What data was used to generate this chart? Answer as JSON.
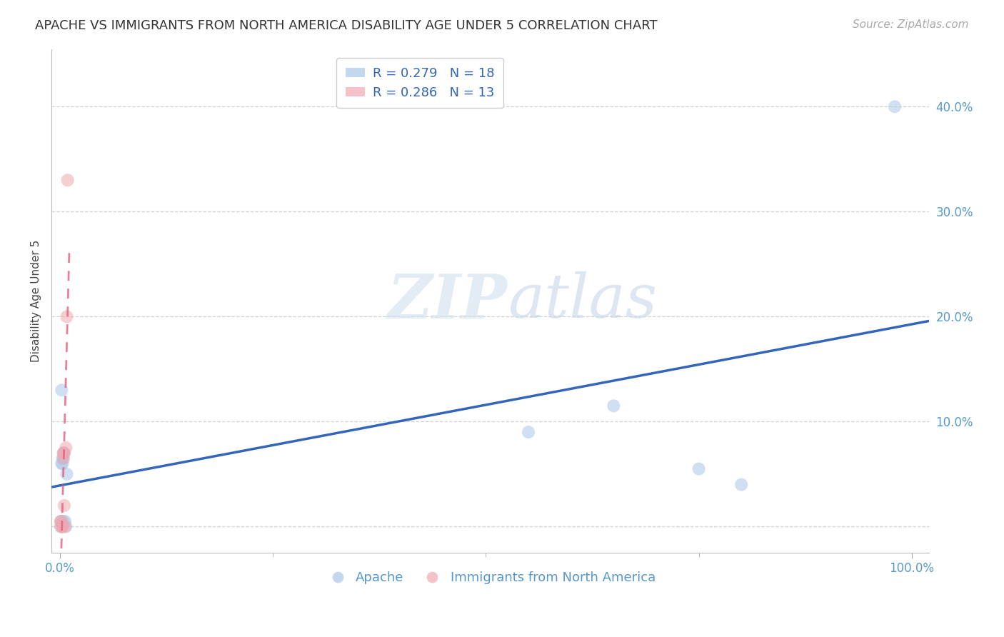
{
  "title": "APACHE VS IMMIGRANTS FROM NORTH AMERICA DISABILITY AGE UNDER 5 CORRELATION CHART",
  "source": "Source: ZipAtlas.com",
  "ylabel": "Disability Age Under 5",
  "watermark_zip": "ZIP",
  "watermark_atlas": "atlas",
  "background_color": "#ffffff",
  "plot_bg_color": "#ffffff",
  "grid_color": "#cccccc",
  "apache_color": "#aac8e8",
  "immigrants_color": "#f0a8b0",
  "apache_line_color": "#3366bb",
  "immigrants_line_color": "#e06080",
  "apache_label": "Apache",
  "immigrants_label": "Immigrants from North America",
  "legend_apache_R": "R = 0.279",
  "legend_apache_N": "N = 18",
  "legend_immigrants_R": "R = 0.286",
  "legend_immigrants_N": "N = 13",
  "apache_x": [
    0.001,
    0.001,
    0.002,
    0.002,
    0.003,
    0.003,
    0.004,
    0.004,
    0.004,
    0.005,
    0.006,
    0.007,
    0.008,
    0.55,
    0.65,
    0.75,
    0.8,
    0.98
  ],
  "apache_y": [
    0.005,
    0.0,
    0.06,
    0.13,
    0.06,
    0.065,
    0.065,
    0.07,
    0.005,
    0.07,
    0.005,
    0.0,
    0.05,
    0.09,
    0.115,
    0.055,
    0.04,
    0.4
  ],
  "immigrants_x": [
    0.001,
    0.001,
    0.002,
    0.003,
    0.003,
    0.004,
    0.004,
    0.005,
    0.005,
    0.006,
    0.007,
    0.008,
    0.009
  ],
  "immigrants_y": [
    0.0,
    0.005,
    0.005,
    0.0,
    0.0,
    0.065,
    0.07,
    0.02,
    0.07,
    0.0,
    0.075,
    0.2,
    0.33
  ],
  "xlim": [
    -0.01,
    1.02
  ],
  "ylim": [
    -0.025,
    0.455
  ],
  "xtick_vals": [
    0.0,
    1.0
  ],
  "xtick_labels": [
    "0.0%",
    "100.0%"
  ],
  "ytick_right_vals": [
    0.1,
    0.2,
    0.3,
    0.4
  ],
  "ytick_right_labels": [
    "10.0%",
    "20.0%",
    "30.0%",
    "40.0%"
  ],
  "title_fontsize": 13,
  "axis_label_fontsize": 11,
  "tick_fontsize": 12,
  "legend_fontsize": 13,
  "source_fontsize": 11,
  "marker_size": 170,
  "alpha_scatter": 0.55
}
